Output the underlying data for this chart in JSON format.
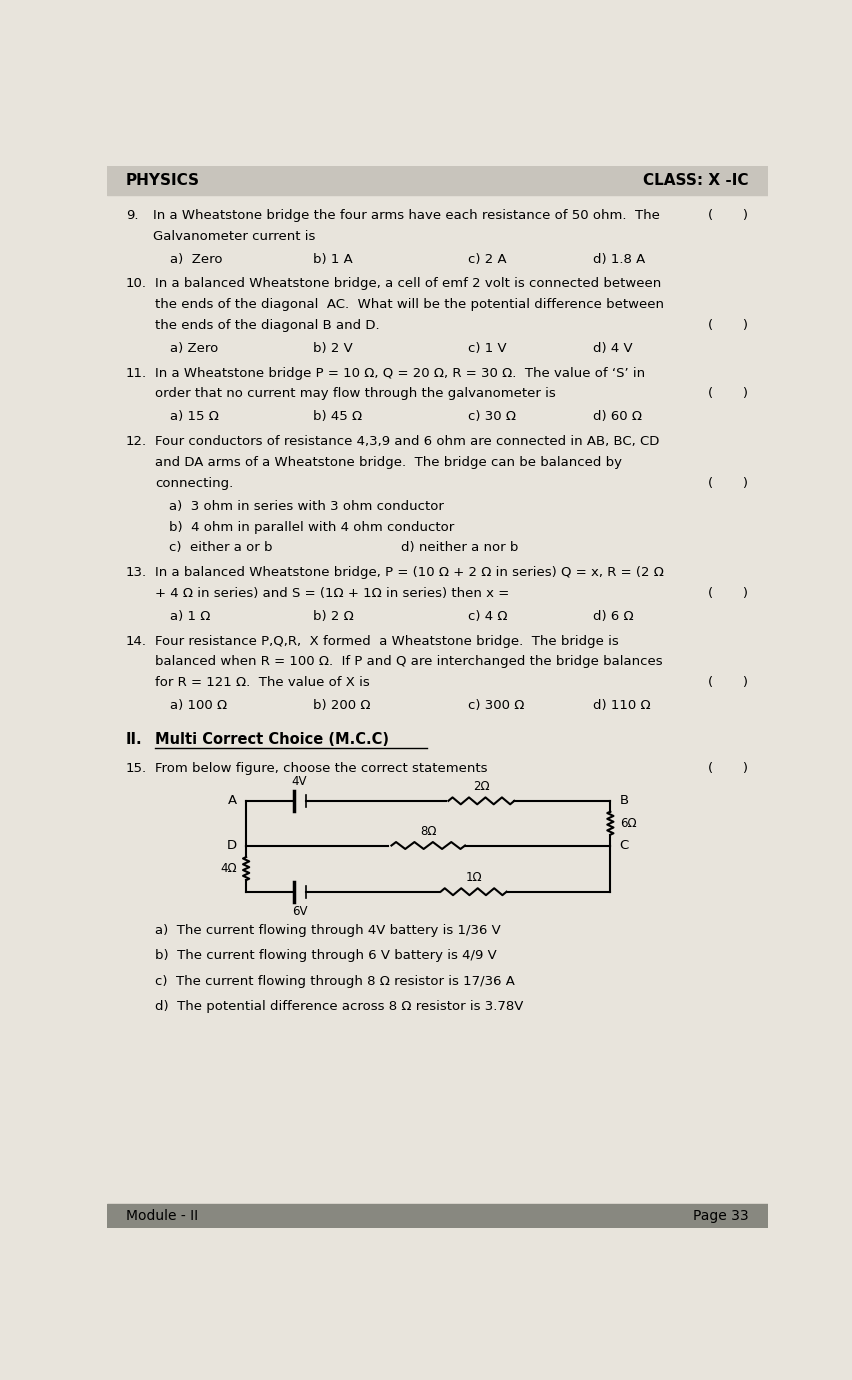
{
  "header_left": "PHYSICS",
  "header_right": "CLASS: X -IC",
  "bg_color": "#e8e4dc",
  "header_bg": "#c8c4bc",
  "footer_bg": "#888880",
  "footer_left": "Module - II",
  "footer_right": "Page 33",
  "section_II": "II.",
  "section_title": "Multi Correct Choice (M.C.C)",
  "q15_options": [
    "a)  The current flowing through 4V battery is 1/36 V",
    "b)  The current flowing through 6 V battery is 4/9 V",
    "c)  The current flowing through 8 Ω resistor is 17/36 A",
    "d)  The potential difference across 8 Ω resistor is 3.78V"
  ]
}
